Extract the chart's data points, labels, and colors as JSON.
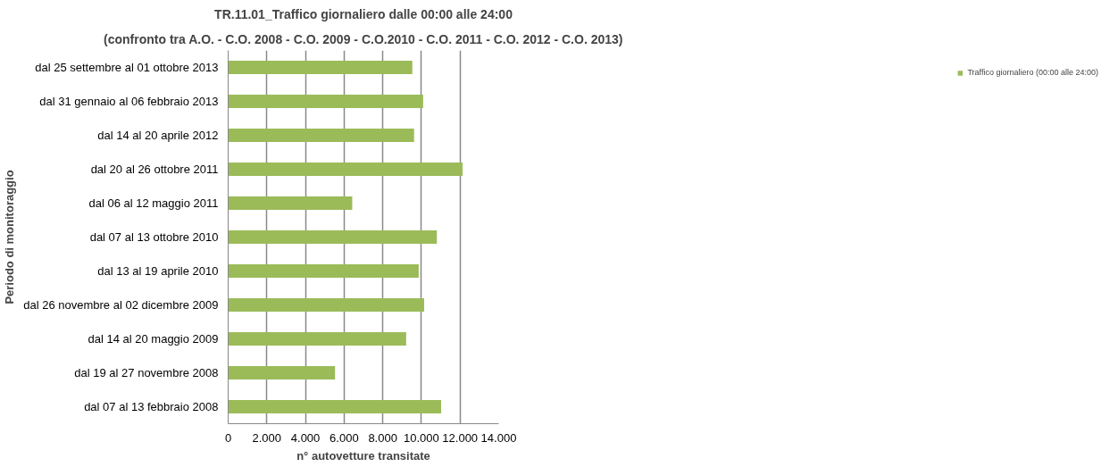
{
  "chart_data": {
    "type": "bar",
    "orientation": "horizontal",
    "title": "TR.11.01_Traffico giornaliero dalle 00:00 alle 24:00",
    "subtitle": "(confronto tra A.O. - C.O. 2008 - C.O. 2009 - C.O.2010 - C.O. 2011 - C.O. 2012 - C.O. 2013)",
    "xlabel": "n° autovetture transitate",
    "ylabel": "Periodo di monitoraggio",
    "categories": [
      "dal 25 settembre al 01 ottobre 2013",
      "dal 31 gennaio al 06 febbraio 2013",
      "dal 14 al 20 aprile 2012",
      "dal 20 al 26 ottobre 2011",
      "dal 06 al 12 maggio 2011",
      "dal 07 al 13 ottobre 2010",
      "dal 13 al 19 aprile 2010",
      "dal 26 novembre al 02 dicembre 2009",
      "dal 14 al 20 maggio 2009",
      "dal 19 al 27 novembre 2008",
      "dal 07 al 13 febbraio 2008"
    ],
    "series": [
      {
        "name": "Traffico giornaliero (00:00 alle 24:00)",
        "color": "#9bbb59",
        "values": [
          9530,
          10090,
          9620,
          12130,
          6420,
          10800,
          9860,
          10140,
          9210,
          5530,
          11020
        ]
      }
    ],
    "xlim": [
      0,
      14000
    ],
    "xticks": [
      0,
      {
        "value": 2000,
        "label": "2.000"
      },
      {
        "value": 4000,
        "label": "4.000"
      },
      {
        "value": 6000,
        "label": "6.000"
      },
      {
        "value": 8000,
        "label": "8.000"
      },
      {
        "value": 10000,
        "label": "10.000"
      },
      {
        "value": 12000,
        "label": "12.000"
      },
      {
        "value": 14000,
        "label": "14.000"
      }
    ],
    "grid": "x",
    "legend": "right"
  }
}
